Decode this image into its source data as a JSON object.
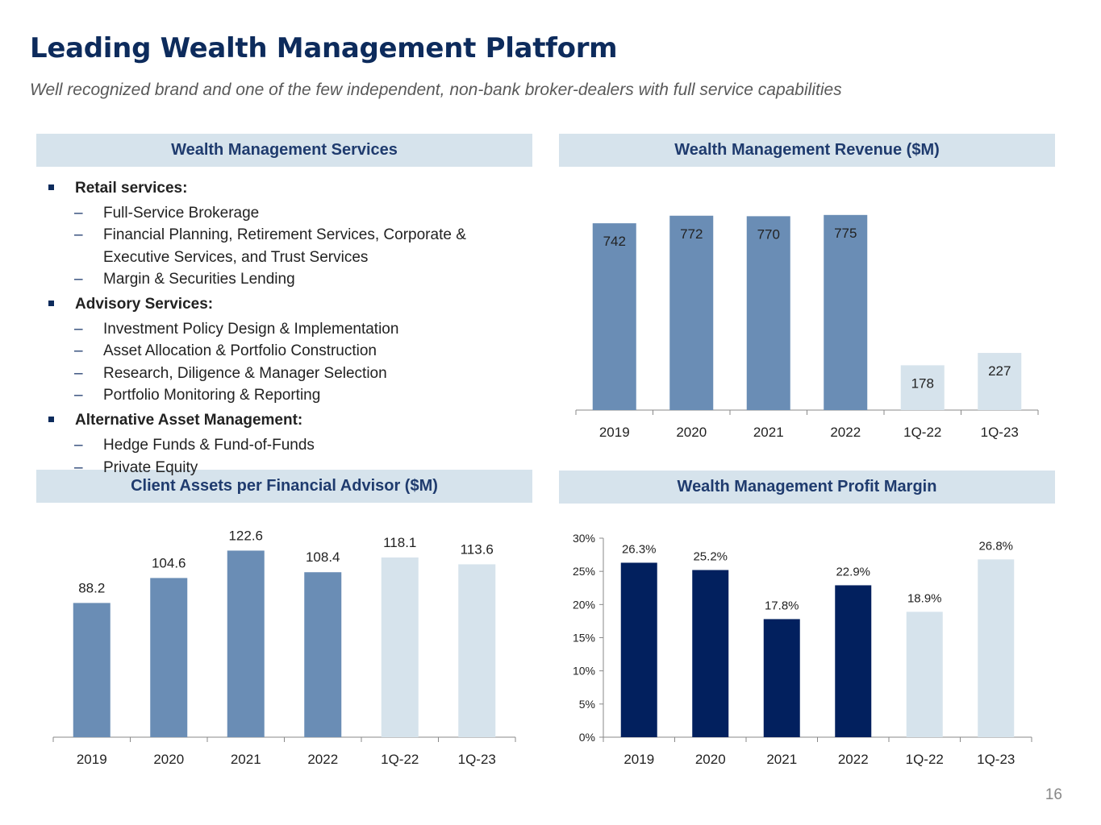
{
  "header": {
    "title": "Leading Wealth Management Platform",
    "subtitle": "Well recognized brand and one of the few independent, non-bank broker-dealers with full service capabilities"
  },
  "services": {
    "heading": "Wealth Management Services",
    "groups": [
      {
        "label": "Retail services:",
        "items": [
          "Full-Service Brokerage",
          "Financial Planning, Retirement Services, Corporate &",
          "Executive Services, and Trust Services",
          "Margin & Securities Lending"
        ]
      },
      {
        "label": "Advisory Services:",
        "items": [
          "Investment Policy Design & Implementation",
          "Asset Allocation & Portfolio Construction",
          "Research, Diligence & Manager Selection",
          "Portfolio Monitoring & Reporting"
        ]
      },
      {
        "label": "Alternative Asset Management:",
        "items": [
          "Hedge Funds & Fund-of-Funds",
          "Private Equity"
        ]
      }
    ]
  },
  "colors": {
    "header_bg": "#d6e3ec",
    "header_text": "#1f3b6e",
    "bar_mid": "#6a8db5",
    "bar_light": "#d6e3ec",
    "bar_dark": "#02205e",
    "title": "#0d2b5c"
  },
  "page_number": "16",
  "chart_data": [
    {
      "id": "revenue",
      "type": "bar",
      "title": "Wealth Management Revenue ($M)",
      "categories": [
        "2019",
        "2020",
        "2021",
        "2022",
        "1Q-22",
        "1Q-23"
      ],
      "values": [
        742,
        772,
        770,
        775,
        178,
        227
      ],
      "labels": [
        "742",
        "772",
        "770",
        "775",
        "178",
        "227"
      ],
      "ylim": [
        0,
        800
      ]
    },
    {
      "id": "assets",
      "type": "bar",
      "title": "Client Assets per Financial Advisor ($M)",
      "categories": [
        "2019",
        "2020",
        "2021",
        "2022",
        "1Q-22",
        "1Q-23"
      ],
      "values": [
        88.2,
        104.6,
        122.6,
        108.4,
        118.1,
        113.6
      ],
      "labels": [
        "88.2",
        "104.6",
        "122.6",
        "108.4",
        "118.1",
        "113.6"
      ],
      "ylim": [
        0,
        135
      ]
    },
    {
      "id": "margin",
      "type": "bar",
      "title": "Wealth Management Profit Margin",
      "categories": [
        "2019",
        "2020",
        "2021",
        "2022",
        "1Q-22",
        "1Q-23"
      ],
      "values": [
        26.3,
        25.2,
        17.8,
        22.9,
        18.9,
        26.8
      ],
      "labels": [
        "26.3%",
        "25.2%",
        "17.8%",
        "22.9%",
        "18.9%",
        "26.8%"
      ],
      "ylim": [
        0,
        30
      ],
      "yticks": [
        "0%",
        "5%",
        "10%",
        "15%",
        "20%",
        "25%",
        "30%"
      ]
    }
  ]
}
